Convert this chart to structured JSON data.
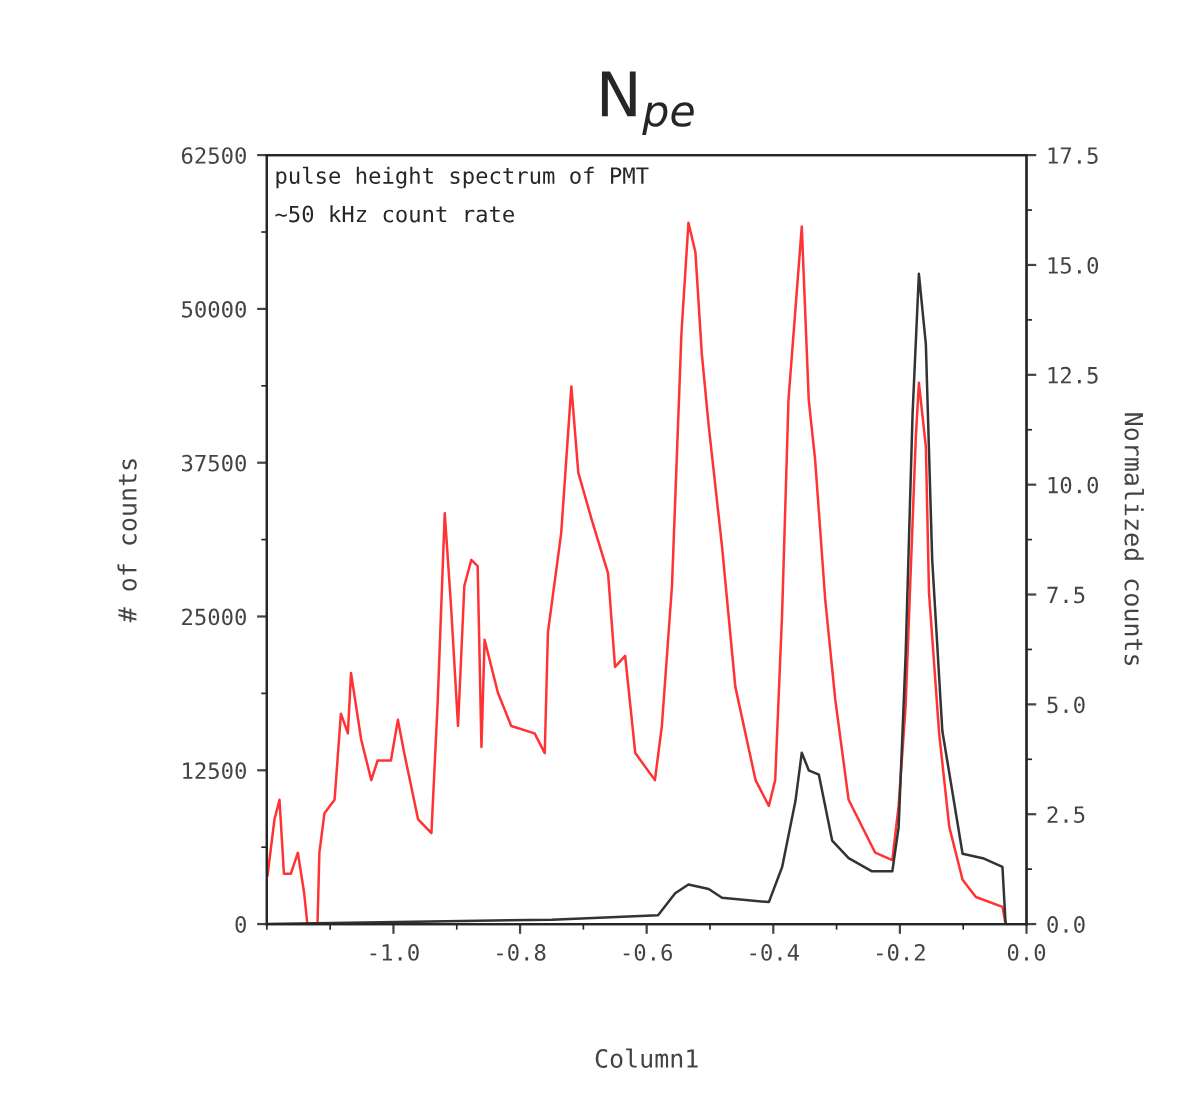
{
  "chart_data": {
    "type": "line",
    "title": "N$_{pe}$",
    "xlabel": "Column1",
    "ylabel": "# of counts",
    "y2label": "Normalized counts",
    "annotations": [
      "pulse height spectrum of PMT",
      "~50 kHz count rate"
    ],
    "xlim": [
      -1.2,
      0.0
    ],
    "xticks": [
      {
        "value": -1.0,
        "label": "-1.0"
      },
      -0.8,
      -0.6,
      -0.4,
      -0.2,
      {
        "value": 0.0,
        "label": "0.0"
      }
    ],
    "ylim": [
      0,
      62500
    ],
    "yticks": [
      0,
      12500,
      25000,
      37500,
      50000,
      62500
    ],
    "y2lim": [
      0.0,
      17.5
    ],
    "y2ticks": [
      {
        "value": 0.0,
        "label": "0.0"
      },
      2.5,
      {
        "value": 5.0,
        "label": "5.0"
      },
      7.5,
      {
        "value": 10.0,
        "label": "10.0"
      },
      12.5,
      {
        "value": 15.0,
        "label": "15.0"
      },
      17.5
    ],
    "grid": false,
    "legend": false,
    "series": [
      {
        "color": "#ff3333",
        "x": [
          -1.199,
          -1.188,
          -1.18,
          -1.173,
          -1.162,
          -1.151,
          -1.141,
          -1.136,
          -1.12,
          -1.117,
          -1.109,
          -1.093,
          -1.083,
          -1.072,
          -1.067,
          -1.051,
          -1.035,
          -1.025,
          -1.004,
          -0.993,
          -0.983,
          -0.961,
          -0.94,
          -0.93,
          -0.919,
          -0.909,
          -0.898,
          -0.888,
          -0.877,
          -0.867,
          -0.861,
          -0.856,
          -0.835,
          -0.814,
          -0.777,
          -0.761,
          -0.756,
          -0.735,
          -0.719,
          -0.708,
          -0.687,
          -0.661,
          -0.65,
          -0.634,
          -0.618,
          -0.587,
          -0.576,
          -0.56,
          -0.545,
          -0.534,
          -0.523,
          -0.513,
          -0.502,
          -0.481,
          -0.46,
          -0.428,
          -0.407,
          -0.397,
          -0.386,
          -0.376,
          -0.355,
          -0.344,
          -0.334,
          -0.318,
          -0.302,
          -0.281,
          -0.239,
          -0.212,
          -0.202,
          -0.191,
          -0.175,
          -0.17,
          -0.159,
          -0.154,
          -0.138,
          -0.122,
          -0.101,
          -0.08,
          -0.038,
          -0.033
        ],
        "values": [
          3900,
          8500,
          10100,
          4100,
          4100,
          5800,
          2500,
          0,
          0,
          5800,
          9000,
          10100,
          17100,
          15500,
          20400,
          15000,
          11700,
          13300,
          13300,
          16600,
          13900,
          8500,
          7400,
          18200,
          33400,
          25800,
          16100,
          27500,
          29600,
          29100,
          14400,
          23100,
          18800,
          16100,
          15500,
          13900,
          23700,
          31800,
          43700,
          36700,
          32900,
          28500,
          20900,
          21800,
          13900,
          11700,
          16100,
          27500,
          48100,
          57000,
          54600,
          46400,
          40500,
          30700,
          19300,
          11700,
          9600,
          11700,
          25300,
          42600,
          56700,
          42600,
          37800,
          26400,
          18200,
          10100,
          5800,
          5200,
          9600,
          17700,
          39400,
          44000,
          38800,
          26900,
          15500,
          7900,
          3600,
          2200,
          1400,
          0
        ]
      },
      {
        "color": "#333333",
        "axis": "y2",
        "x": [
          -1.199,
          -0.75,
          -0.582,
          -0.555,
          -0.534,
          -0.502,
          -0.481,
          -0.407,
          -0.386,
          -0.365,
          -0.355,
          -0.344,
          -0.328,
          -0.307,
          -0.281,
          -0.244,
          -0.212,
          -0.202,
          -0.191,
          -0.18,
          -0.17,
          -0.159,
          -0.149,
          -0.133,
          -0.101,
          -0.069,
          -0.038,
          -0.033
        ],
        "values": [
          0.0,
          0.1,
          0.2,
          0.7,
          0.9,
          0.8,
          0.6,
          0.5,
          1.3,
          2.8,
          3.9,
          3.5,
          3.4,
          1.9,
          1.5,
          1.2,
          1.2,
          2.2,
          6.1,
          11.6,
          14.8,
          13.2,
          8.3,
          4.4,
          1.6,
          1.5,
          1.3,
          0.0
        ]
      }
    ]
  }
}
